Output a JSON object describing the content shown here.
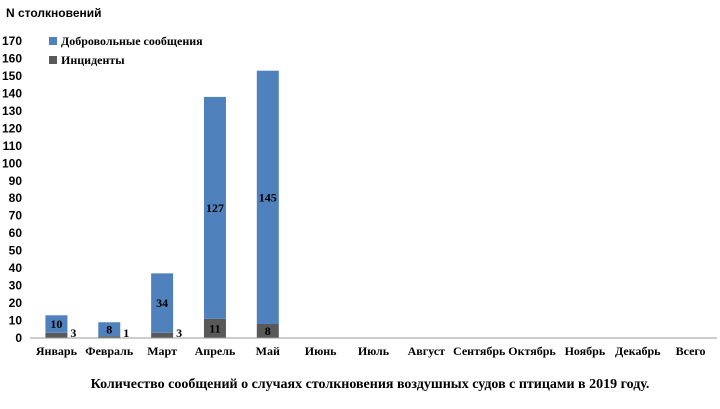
{
  "chart_data": {
    "type": "bar",
    "stacked": true,
    "ylabel": "N столкновений",
    "ylim": [
      0,
      170
    ],
    "ytick_step": 10,
    "categories": [
      "Январь",
      "Февраль",
      "Март",
      "Апрель",
      "Май",
      "Июнь",
      "Июль",
      "Август",
      "Сентябрь",
      "Октябрь",
      "Ноябрь",
      "Декабрь",
      "Всего"
    ],
    "series": [
      {
        "name": "Инциденты",
        "color": "#595959",
        "values": [
          3,
          1,
          3,
          11,
          8,
          null,
          null,
          null,
          null,
          null,
          null,
          null,
          null
        ]
      },
      {
        "name": "Добровольные сообщения",
        "color": "#4f81bd",
        "values": [
          10,
          8,
          34,
          127,
          145,
          null,
          null,
          null,
          null,
          null,
          null,
          null,
          null
        ]
      }
    ],
    "legend_position": "top-left",
    "grid": false,
    "caption": "Количество сообщений о случаях столкновения воздушных судов с птицами в 2019 году."
  }
}
